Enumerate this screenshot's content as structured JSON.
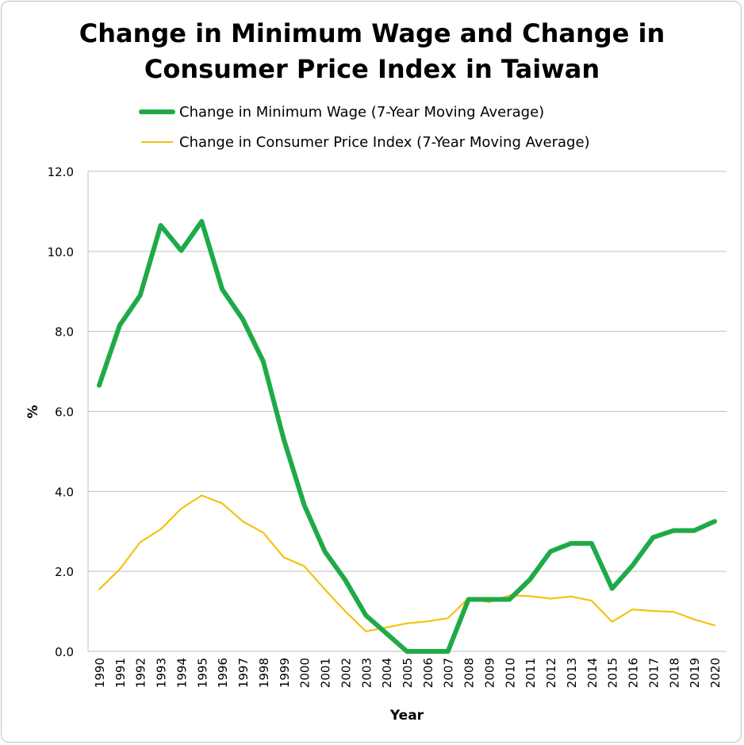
{
  "chart_data": {
    "type": "line",
    "title_lines": [
      "Change in Minimum Wage and Change in",
      "Consumer Price Index in Taiwan"
    ],
    "xlabel": "Year",
    "ylabel": "%",
    "ylim": [
      0,
      12
    ],
    "y_ticks": [
      "0.0",
      "2.0",
      "4.0",
      "6.0",
      "8.0",
      "10.0",
      "12.0"
    ],
    "y_tick_values": [
      0,
      2,
      4,
      6,
      8,
      10,
      12
    ],
    "x": [
      "1990",
      "1991",
      "1992",
      "1993",
      "1994",
      "1995",
      "1996",
      "1997",
      "1998",
      "1999",
      "2000",
      "2001",
      "2002",
      "2003",
      "2004",
      "2005",
      "2006",
      "2007",
      "2008",
      "2009",
      "2010",
      "2011",
      "2012",
      "2013",
      "2014",
      "2015",
      "2016",
      "2017",
      "2018",
      "2019",
      "2020"
    ],
    "grid": true,
    "legend_position": "top",
    "series": [
      {
        "name": "Change in Minimum Wage (7-Year Moving Average)",
        "color": "#1faa48",
        "values": [
          6.65,
          8.15,
          8.9,
          10.65,
          10.02,
          10.75,
          9.05,
          8.3,
          7.25,
          5.3,
          3.65,
          2.5,
          1.78,
          0.9,
          0.45,
          0.0,
          0.0,
          0.0,
          1.3,
          1.3,
          1.3,
          1.8,
          2.5,
          2.7,
          2.7,
          1.57,
          2.15,
          2.85,
          3.02,
          3.02,
          3.25
        ]
      },
      {
        "name": "Change in Consumer Price Index (7-Year Moving Average)",
        "color": "#f5c211",
        "values": [
          1.55,
          2.05,
          2.73,
          3.05,
          3.57,
          3.9,
          3.7,
          3.25,
          2.97,
          2.35,
          2.13,
          1.55,
          1.0,
          0.5,
          0.6,
          0.7,
          0.75,
          0.83,
          1.33,
          1.23,
          1.4,
          1.38,
          1.32,
          1.37,
          1.27,
          0.74,
          1.05,
          1.01,
          0.99,
          0.8,
          0.65
        ]
      }
    ]
  }
}
